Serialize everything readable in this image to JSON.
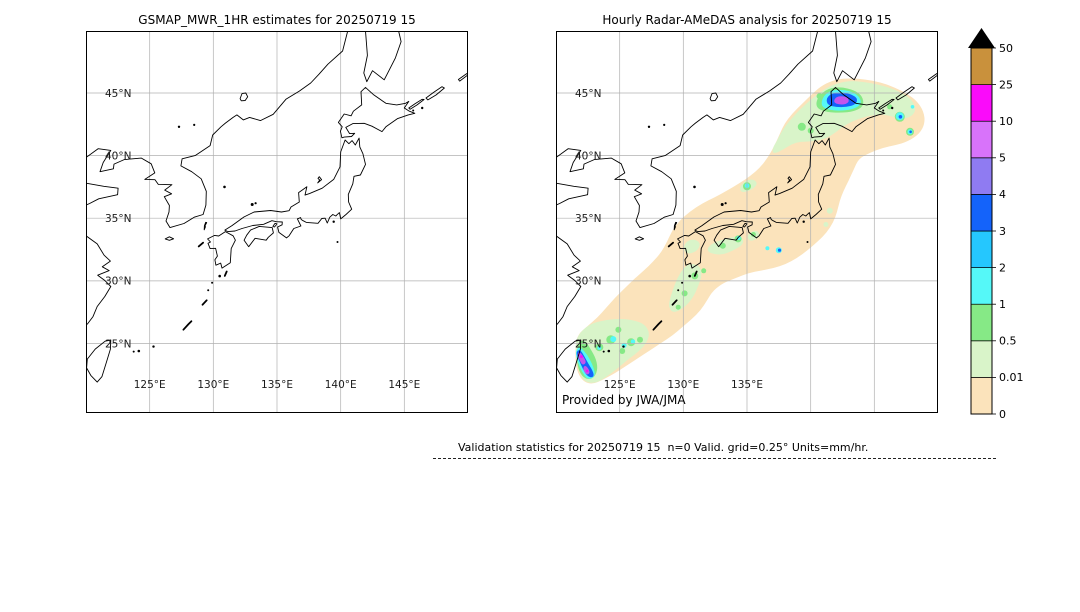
{
  "left_panel": {
    "title": "GSMAP_MWR_1HR estimates for 20250719 15"
  },
  "right_panel": {
    "title": "Hourly Radar-AMeDAS analysis for 20250719 15",
    "credit": "Provided by JWA/JMA"
  },
  "annotation": "Validation statistics for 20250719 15  n=0 Valid. grid=0.25° Units=mm/hr.",
  "axes": {
    "lon_range": [
      120,
      150
    ],
    "lat_range": [
      19.4,
      49.95
    ],
    "lat_ticks": [
      {
        "label": "45°N",
        "lat": 45
      },
      {
        "label": "40°N",
        "lat": 40
      },
      {
        "label": "35°N",
        "lat": 35
      },
      {
        "label": "30°N",
        "lat": 30
      },
      {
        "label": "25°N",
        "lat": 25
      }
    ],
    "lon_ticks_left": [
      {
        "label": "125°E",
        "lon": 125
      },
      {
        "label": "130°E",
        "lon": 130
      },
      {
        "label": "135°E",
        "lon": 135
      },
      {
        "label": "140°E",
        "lon": 140
      },
      {
        "label": "145°E",
        "lon": 145
      }
    ],
    "lon_ticks_right": [
      {
        "label": "125°E",
        "lon": 125
      },
      {
        "label": "130°E",
        "lon": 130
      },
      {
        "label": "135°E",
        "lon": 135
      }
    ],
    "grid_lons": [
      125,
      130,
      135,
      140,
      145
    ],
    "grid_lats": [
      25,
      30,
      35,
      40,
      45
    ]
  },
  "colorbar": {
    "units": "mm/hr",
    "tick_labels": [
      "0",
      "0.01",
      "0.5",
      "1",
      "2",
      "3",
      "4",
      "5",
      "10",
      "25",
      "50"
    ],
    "levels": [
      0,
      0.01,
      0.5,
      1,
      2,
      3,
      4,
      5,
      10,
      25,
      50
    ],
    "colors": [
      "#fbe3bb",
      "#d9f4c9",
      "#86e986",
      "#55f8f8",
      "#25c7fe",
      "#1463fa",
      "#8f7bf2",
      "#d873fa",
      "#fa0bfa",
      "#c9913c"
    ],
    "over_color": "#000000"
  },
  "map_style": {
    "grid_color": "#b0b0b0",
    "coast_color": "#000000",
    "background": "#ffffff",
    "label_color": "#1a1a1a"
  }
}
